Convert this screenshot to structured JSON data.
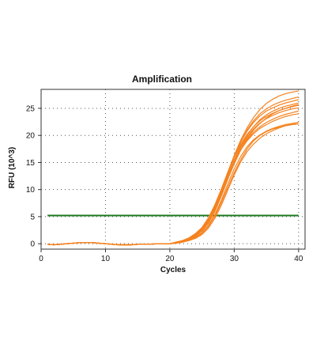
{
  "chart_data": {
    "type": "line",
    "title": "Amplification",
    "xlabel": "Cycles",
    "ylabel": "RFU (10^3)",
    "xlim": [
      0,
      41
    ],
    "ylim": [
      -1,
      28.5
    ],
    "xticks": [
      0,
      10,
      20,
      30,
      40
    ],
    "yticks": [
      0,
      5,
      10,
      15,
      20,
      25
    ],
    "grid": true,
    "curve_color": "#F5821F",
    "threshold": {
      "value": 5.2,
      "color": "#1E7B1E"
    },
    "cycles": [
      1,
      2,
      3,
      4,
      5,
      6,
      7,
      8,
      9,
      10,
      11,
      12,
      13,
      14,
      15,
      16,
      17,
      18,
      19,
      20,
      21,
      22,
      23,
      24,
      25,
      26,
      27,
      28,
      29,
      30,
      31,
      32,
      33,
      34,
      35,
      36,
      37,
      38,
      39,
      40
    ],
    "series": [
      {
        "values": [
          -0.1,
          -0.2,
          -0.1,
          0,
          0.1,
          0.2,
          0.2,
          0.2,
          0.1,
          0,
          -0.1,
          -0.2,
          -0.2,
          -0.2,
          -0.1,
          -0.1,
          -0.1,
          0,
          0,
          0,
          0.3,
          0.6,
          1,
          1.8,
          2.9,
          4.6,
          7,
          9.9,
          13,
          15.9,
          18.3,
          20.2,
          21.6,
          22.7,
          23.5,
          24.1,
          24.6,
          25,
          25.3,
          25.6
        ]
      },
      {
        "values": [
          -0.1,
          -0.2,
          -0.1,
          0,
          0.1,
          0.2,
          0.2,
          0.2,
          0.1,
          0,
          -0.1,
          -0.2,
          -0.2,
          -0.2,
          -0.1,
          -0.1,
          -0.1,
          0,
          0,
          0,
          0.2,
          0.5,
          0.9,
          1.6,
          2.6,
          4.2,
          6.5,
          9.5,
          12.8,
          16,
          18.8,
          21,
          22.7,
          24,
          24.9,
          25.6,
          26.1,
          26.5,
          26.8,
          27.1
        ]
      },
      {
        "values": [
          -0.1,
          -0.2,
          -0.1,
          0,
          0.1,
          0.2,
          0.2,
          0.2,
          0.1,
          0,
          -0.1,
          -0.2,
          -0.2,
          -0.2,
          -0.1,
          -0.1,
          -0.1,
          0,
          0,
          0,
          0.3,
          0.6,
          1.1,
          1.9,
          3,
          4.8,
          7.2,
          10.1,
          13.2,
          16.3,
          19.1,
          21.4,
          23.3,
          24.8,
          25.9,
          26.7,
          27.3,
          27.7,
          28,
          28.2
        ]
      },
      {
        "values": [
          -0.1,
          -0.2,
          -0.1,
          0,
          0.1,
          0.2,
          0.2,
          0.2,
          0.1,
          0,
          -0.1,
          -0.2,
          -0.2,
          -0.2,
          -0.1,
          -0.1,
          -0.1,
          0,
          0,
          0,
          0.2,
          0.5,
          0.9,
          1.5,
          2.5,
          4,
          6.2,
          9,
          12,
          14.8,
          17.3,
          19.4,
          21,
          22.2,
          23.2,
          24,
          24.6,
          25,
          25.4,
          25.7
        ]
      },
      {
        "values": [
          -0.1,
          -0.2,
          -0.1,
          0,
          0.1,
          0.2,
          0.2,
          0.2,
          0.1,
          0,
          -0.1,
          -0.2,
          -0.2,
          -0.2,
          -0.1,
          -0.1,
          -0.1,
          0,
          0,
          0,
          0.2,
          0.4,
          0.8,
          1.4,
          2.3,
          3.8,
          6,
          8.8,
          11.9,
          14.8,
          17.3,
          19.2,
          20.6,
          21.6,
          22.4,
          23,
          23.5,
          23.9,
          24.2,
          24.5
        ]
      },
      {
        "values": [
          -0.1,
          -0.2,
          -0.1,
          0,
          0.1,
          0.2,
          0.2,
          0.2,
          0.1,
          0,
          -0.1,
          -0.2,
          -0.2,
          -0.2,
          -0.1,
          -0.1,
          -0.1,
          0,
          0,
          0,
          0.2,
          0.5,
          0.9,
          1.6,
          2.6,
          4.2,
          6.4,
          9.2,
          12.2,
          15,
          17.3,
          19,
          20.3,
          21.3,
          22,
          22.6,
          23.1,
          23.5,
          23.8,
          24
        ]
      },
      {
        "values": [
          -0.1,
          -0.2,
          -0.1,
          0,
          0.1,
          0.2,
          0.2,
          0.2,
          0.1,
          0,
          -0.1,
          -0.2,
          -0.2,
          -0.2,
          -0.1,
          -0.1,
          -0.1,
          0,
          0,
          0,
          0.2,
          0.4,
          0.7,
          1.2,
          2,
          3.4,
          5.4,
          8,
          11,
          13.8,
          16.1,
          17.9,
          19.2,
          20.1,
          20.8,
          21.3,
          21.7,
          22,
          22.2,
          22.4
        ]
      },
      {
        "values": [
          -0.1,
          -0.2,
          -0.1,
          0,
          0.1,
          0.2,
          0.2,
          0.2,
          0.1,
          0,
          -0.1,
          -0.2,
          -0.2,
          -0.2,
          -0.1,
          -0.1,
          -0.1,
          0,
          0,
          0,
          0.1,
          0.3,
          0.6,
          1.1,
          1.9,
          3.2,
          5.1,
          7.6,
          10.4,
          13.1,
          15.5,
          17.5,
          19,
          20,
          20.7,
          21.2,
          21.5,
          21.8,
          22,
          22.1
        ]
      },
      {
        "values": [
          -0.1,
          -0.2,
          -0.1,
          0,
          0.1,
          0.2,
          0.2,
          0.2,
          0.1,
          0,
          -0.1,
          -0.2,
          -0.2,
          -0.2,
          -0.1,
          -0.1,
          -0.1,
          0,
          0,
          0,
          0.2,
          0.4,
          0.8,
          1.4,
          2.4,
          4,
          6.3,
          9.2,
          12.4,
          15.4,
          18,
          20,
          21.6,
          22.9,
          23.8,
          24.5,
          25,
          25.4,
          25.7,
          26
        ]
      },
      {
        "values": [
          -0.1,
          -0.2,
          -0.1,
          0,
          0.1,
          0.2,
          0.2,
          0.2,
          0.1,
          0,
          -0.1,
          -0.2,
          -0.2,
          -0.2,
          -0.1,
          -0.1,
          -0.1,
          0,
          0,
          0,
          0.3,
          0.5,
          1,
          1.7,
          2.8,
          4.5,
          6.8,
          9.7,
          12.9,
          16,
          18.7,
          20.8,
          22.4,
          23.6,
          24.5,
          25.1,
          25.6,
          26,
          26.3,
          26.6
        ]
      },
      {
        "values": [
          -0.1,
          -0.2,
          -0.1,
          0,
          0.1,
          0.2,
          0.2,
          0.2,
          0.1,
          0,
          -0.1,
          -0.2,
          -0.2,
          -0.2,
          -0.1,
          -0.1,
          -0.1,
          0,
          0,
          0,
          0.1,
          0.3,
          0.6,
          1,
          1.7,
          2.9,
          4.7,
          7.1,
          9.9,
          12.7,
          15.1,
          17,
          18.4,
          19.5,
          20.3,
          20.9,
          21.4,
          21.8,
          22.1,
          22.4
        ]
      },
      {
        "values": [
          -0.1,
          -0.2,
          -0.1,
          0,
          0.1,
          0.2,
          0.2,
          0.2,
          0.1,
          0,
          -0.1,
          -0.2,
          -0.2,
          -0.2,
          -0.1,
          -0.1,
          -0.1,
          0,
          0,
          0,
          0.2,
          0.4,
          0.8,
          1.4,
          2.3,
          3.8,
          6,
          8.9,
          12.1,
          15.1,
          17.7,
          19.7,
          21.2,
          22.3,
          23.1,
          23.7,
          24.2,
          24.6,
          24.9,
          25.1
        ]
      }
    ]
  }
}
